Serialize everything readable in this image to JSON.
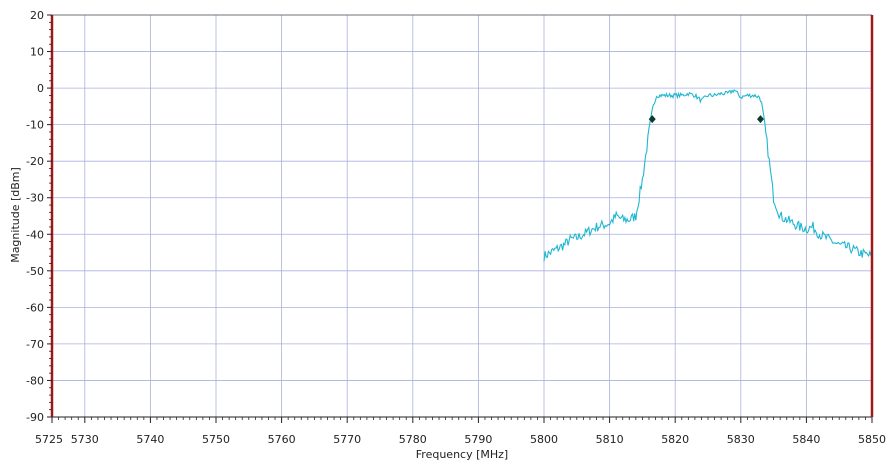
{
  "chart_data": {
    "type": "line",
    "title": "",
    "xlabel": "Frequency [MHz]",
    "ylabel": "Magnitude [dBm]",
    "xlim": [
      5725,
      5850
    ],
    "ylim": [
      -90,
      20
    ],
    "x_ticks": [
      "5725",
      "5730",
      "5740",
      "5750",
      "5760",
      "5770",
      "5780",
      "5790",
      "5800",
      "5810",
      "5820",
      "5830",
      "5840",
      "5850"
    ],
    "y_ticks": [
      "20",
      "10",
      "0",
      "-10",
      "-20",
      "-30",
      "-40",
      "-50",
      "-60",
      "-70",
      "-80",
      "-90"
    ],
    "grid": true,
    "colors": {
      "trace": "#1fb6d0",
      "grid": "#aab0e0",
      "axis_edge": "#a01818",
      "marker": "#0d3b2e"
    },
    "series": [
      {
        "x": [
          5800,
          5801,
          5802,
          5803,
          5804,
          5805,
          5806,
          5807,
          5808,
          5809,
          5810,
          5811,
          5812,
          5813,
          5814,
          5815,
          5816,
          5817,
          5818,
          5819,
          5820,
          5821,
          5822,
          5823,
          5824,
          5825,
          5826,
          5827,
          5828,
          5829,
          5830,
          5831,
          5832,
          5833,
          5834,
          5835,
          5836,
          5837,
          5838,
          5839,
          5840,
          5841,
          5842,
          5843,
          5844,
          5845,
          5846,
          5847,
          5848,
          5849,
          5850
        ],
        "y": [
          -46,
          -45,
          -44,
          -43,
          -41.5,
          -41,
          -40,
          -39,
          -38,
          -37.5,
          -37,
          -35,
          -36,
          -36,
          -35,
          -25,
          -12,
          -2,
          -2,
          -2,
          -2,
          -2,
          -1.5,
          -2,
          -3.5,
          -2,
          -2,
          -1.5,
          -1.5,
          -0.5,
          -2.5,
          -2,
          -2,
          -2.5,
          -15,
          -30,
          -35,
          -36,
          -37,
          -38,
          -38.5,
          -38,
          -40,
          -41,
          -42,
          -43,
          -43.5,
          -44,
          -45,
          -45.5,
          -46
        ]
      }
    ],
    "markers": [
      {
        "x": 5816.5,
        "y": -8.5
      },
      {
        "x": 5833,
        "y": -8.5
      }
    ]
  }
}
